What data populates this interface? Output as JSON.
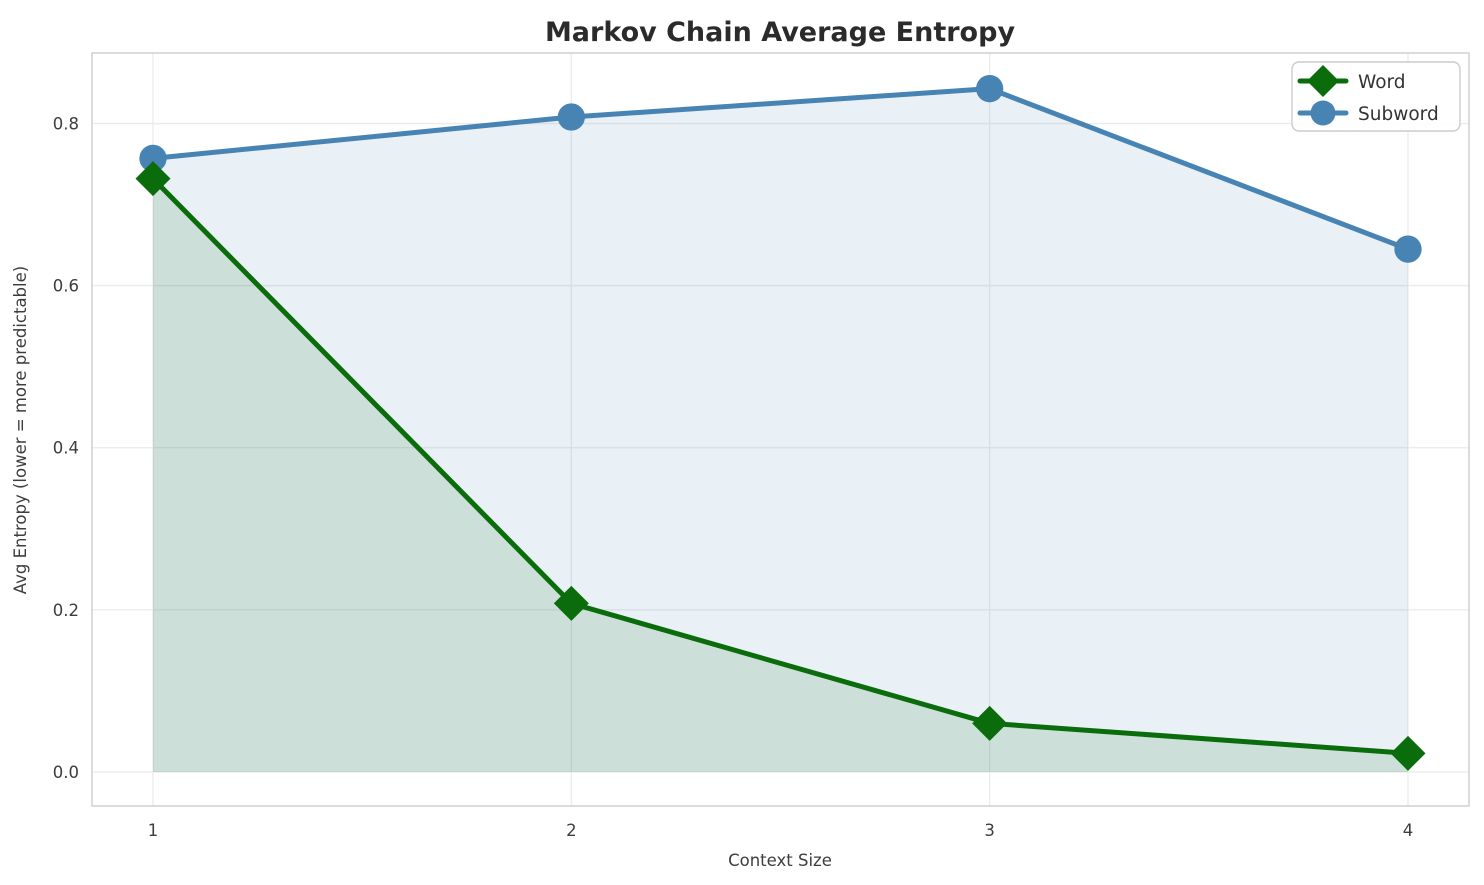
{
  "figure": {
    "title": "Markov Chain Average Entropy"
  },
  "colors": {
    "background": "#ffffff",
    "title_text": "#2b2b2b",
    "tick_text": "#3d3d3d",
    "grid": "#ececec",
    "spine": "#cccccc",
    "word_line": "#0a6c0a",
    "word_fill": "rgba(10,108,10,0.12)",
    "subword_line": "#4783b3",
    "subword_fill": "rgba(70,130,180,0.12)",
    "legend_border": "#cccccc",
    "legend_bg": "#ffffff"
  },
  "chart_data": {
    "type": "line",
    "title": "Markov Chain Average Entropy",
    "xlabel": "Context Size",
    "ylabel": "Avg Entropy (lower = more predictable)",
    "x": [
      1,
      2,
      3,
      4
    ],
    "series": [
      {
        "name": "Word",
        "values": [
          0.732,
          0.208,
          0.06,
          0.023
        ],
        "color": "#0a6c0a",
        "fill": "rgba(10,108,10,0.12)",
        "marker": "diamond"
      },
      {
        "name": "Subword",
        "values": [
          0.757,
          0.808,
          0.843,
          0.645
        ],
        "color": "#4783b3",
        "fill": "rgba(70,130,180,0.12)",
        "marker": "circle"
      }
    ],
    "xticks": [
      1,
      2,
      3,
      4
    ],
    "yticks": [
      0.0,
      0.2,
      0.4,
      0.6,
      0.8
    ],
    "ylim": [
      -0.042,
      0.887
    ],
    "area_baseline": 0,
    "grid": true,
    "legend_position": "upper right"
  }
}
